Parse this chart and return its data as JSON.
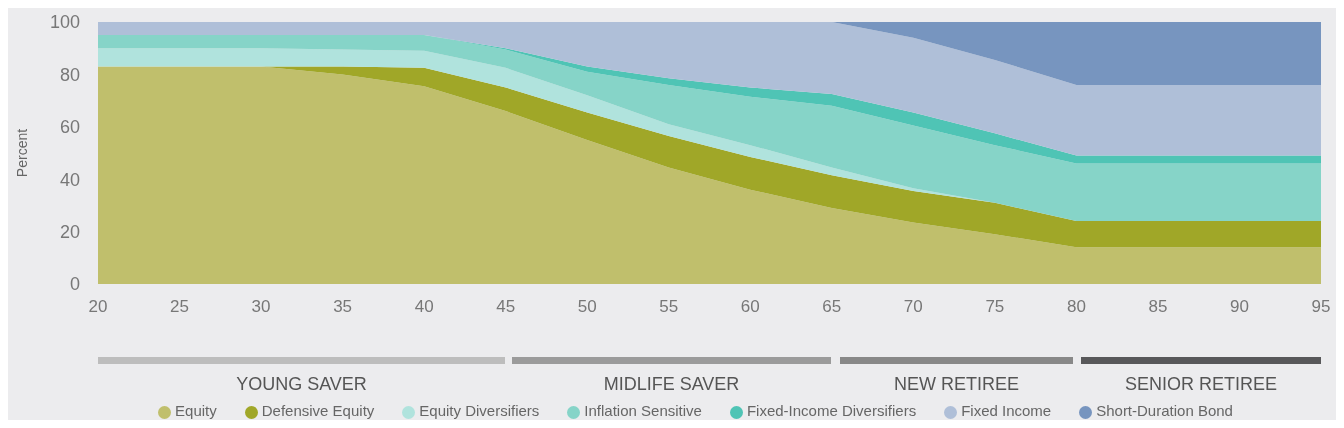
{
  "chart_data": {
    "type": "area",
    "stacked": true,
    "ylabel": "Percent",
    "x": [
      20,
      25,
      30,
      35,
      40,
      45,
      50,
      55,
      60,
      65,
      70,
      75,
      80,
      85,
      90,
      95
    ],
    "xlim": [
      20,
      95
    ],
    "xticks": [
      20,
      25,
      30,
      35,
      40,
      45,
      50,
      55,
      60,
      65,
      70,
      75,
      80,
      85,
      90,
      95
    ],
    "ylim": [
      0,
      100
    ],
    "yticks": [
      0,
      20,
      40,
      60,
      80,
      100
    ],
    "grid": false,
    "legend": "bottom",
    "series": [
      {
        "name": "Equity",
        "color": "#c0bf6c",
        "values": [
          83,
          83,
          83,
          80,
          75.5,
          66,
          55,
          44.5,
          36,
          29,
          23.5,
          19,
          14,
          14,
          14,
          14
        ]
      },
      {
        "name": "Defensive Equity",
        "color": "#a0a728",
        "values": [
          0,
          0,
          0,
          3,
          7,
          9,
          10.5,
          12,
          12.5,
          12.5,
          12,
          12,
          10,
          10,
          10,
          10
        ]
      },
      {
        "name": "Equity Diversifiers",
        "color": "#b0e3dd",
        "values": [
          7,
          7,
          7,
          6.5,
          6.5,
          7.5,
          6.5,
          4.5,
          4.5,
          3,
          1,
          0,
          0,
          0,
          0,
          0
        ]
      },
      {
        "name": "Inflation Sensitive",
        "color": "#86d4c8",
        "values": [
          5,
          5,
          5,
          5.5,
          6,
          7,
          9,
          15,
          18.5,
          23.5,
          24,
          22,
          22,
          22,
          22,
          22
        ]
      },
      {
        "name": "Fixed-Income Diversifiers",
        "color": "#4fc4b5",
        "values": [
          0,
          0,
          0,
          0,
          0,
          0.5,
          2,
          2.5,
          3.5,
          4.5,
          5,
          4.5,
          3,
          3,
          3,
          3
        ]
      },
      {
        "name": "Fixed Income",
        "color": "#afbfd8",
        "values": [
          5,
          5,
          5,
          5,
          5,
          10,
          17,
          21.5,
          25,
          27.5,
          28.5,
          28,
          27,
          27,
          27,
          27
        ]
      },
      {
        "name": "Short-Duration Bond",
        "color": "#7795bf",
        "values": [
          0,
          0,
          0,
          0,
          0,
          0,
          0,
          0,
          0,
          0,
          6,
          14.5,
          24,
          24,
          24,
          24
        ]
      }
    ],
    "annotations": [
      "YOUNG SAVER",
      "MIDLIFE SAVER",
      "NEW RETIREE",
      "SENIOR RETIREE"
    ]
  }
}
